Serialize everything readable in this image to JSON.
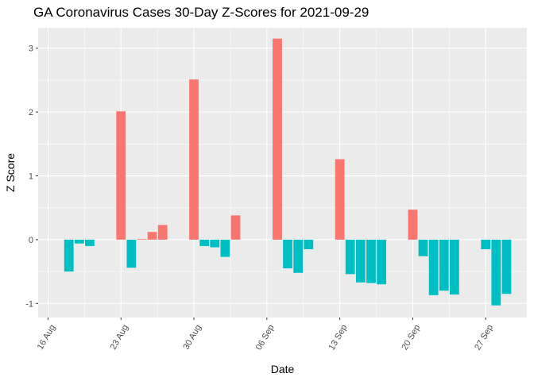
{
  "chart_data": {
    "type": "bar",
    "title": "GA Coronavirus Cases 30-Day Z-Scores for 2021-09-29",
    "xlabel": "Date",
    "ylabel": "Z Score",
    "ylim": [
      -1.22,
      3.32
    ],
    "y_ticks": [
      -1,
      0,
      1,
      2,
      3
    ],
    "x_ticks": [
      {
        "label": "16 Aug",
        "day": 0
      },
      {
        "label": "23 Aug",
        "day": 7
      },
      {
        "label": "30 Aug",
        "day": 14
      },
      {
        "label": "06 Sep",
        "day": 21
      },
      {
        "label": "13 Sep",
        "day": 28
      },
      {
        "label": "20 Sep",
        "day": 35
      },
      {
        "label": "27 Sep",
        "day": 42
      }
    ],
    "x_range_days": [
      -0.95,
      45.95
    ],
    "day_reference": "2021-08-16",
    "colors": {
      "positive": "#F8766D",
      "negative": "#00BFC4",
      "panel": "#EBEBEB",
      "grid": "#FFFFFF"
    },
    "bars": [
      {
        "date": "2021-08-18",
        "day": 2,
        "value": -0.5
      },
      {
        "date": "2021-08-19",
        "day": 3,
        "value": -0.06
      },
      {
        "date": "2021-08-20",
        "day": 4,
        "value": -0.1
      },
      {
        "date": "2021-08-23",
        "day": 7,
        "value": 2.01
      },
      {
        "date": "2021-08-24",
        "day": 8,
        "value": -0.44
      },
      {
        "date": "2021-08-25",
        "day": 9,
        "value": 0.01
      },
      {
        "date": "2021-08-26",
        "day": 10,
        "value": 0.12
      },
      {
        "date": "2021-08-27",
        "day": 11,
        "value": 0.23
      },
      {
        "date": "2021-08-30",
        "day": 14,
        "value": 2.51
      },
      {
        "date": "2021-08-31",
        "day": 15,
        "value": -0.1
      },
      {
        "date": "2021-09-01",
        "day": 16,
        "value": -0.12
      },
      {
        "date": "2021-09-02",
        "day": 17,
        "value": -0.27
      },
      {
        "date": "2021-09-03",
        "day": 18,
        "value": 0.38
      },
      {
        "date": "2021-09-07",
        "day": 22,
        "value": 3.15
      },
      {
        "date": "2021-09-08",
        "day": 23,
        "value": -0.45
      },
      {
        "date": "2021-09-09",
        "day": 24,
        "value": -0.52
      },
      {
        "date": "2021-09-10",
        "day": 25,
        "value": -0.15
      },
      {
        "date": "2021-09-13",
        "day": 28,
        "value": 1.26
      },
      {
        "date": "2021-09-14",
        "day": 29,
        "value": -0.54
      },
      {
        "date": "2021-09-15",
        "day": 30,
        "value": -0.67
      },
      {
        "date": "2021-09-16",
        "day": 31,
        "value": -0.68
      },
      {
        "date": "2021-09-17",
        "day": 32,
        "value": -0.7
      },
      {
        "date": "2021-09-20",
        "day": 35,
        "value": 0.47
      },
      {
        "date": "2021-09-21",
        "day": 36,
        "value": -0.26
      },
      {
        "date": "2021-09-22",
        "day": 37,
        "value": -0.87
      },
      {
        "date": "2021-09-23",
        "day": 38,
        "value": -0.8
      },
      {
        "date": "2021-09-24",
        "day": 39,
        "value": -0.86
      },
      {
        "date": "2021-09-27",
        "day": 42,
        "value": -0.15
      },
      {
        "date": "2021-09-28",
        "day": 43,
        "value": -1.03
      },
      {
        "date": "2021-09-29",
        "day": 44,
        "value": -0.85
      }
    ]
  }
}
